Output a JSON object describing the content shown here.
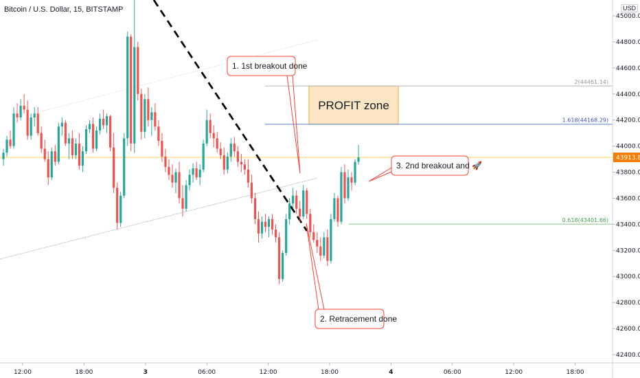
{
  "header": {
    "symbol_title": "Bitcoin / U.S. Dollar, 15, BITSTAMP",
    "currency": "USD"
  },
  "colors": {
    "up": "#26a69a",
    "down": "#ef5350",
    "profit_zone_fill": "#fde6c4",
    "profit_zone_border": "#f5a623",
    "fib_2_line": "#b2b5be",
    "fib_1618_line": "#5b7fd6",
    "fib_0618_line": "#81c784",
    "price_line": "#ffd54f",
    "price_badge": "#f57c00",
    "callout_border": "#f44336",
    "trendline": "#000000"
  },
  "chart_data": {
    "type": "candlestick",
    "title": "Bitcoin / U.S. Dollar, 15, BITSTAMP",
    "y_axis": {
      "position": "right",
      "ticks": [
        45000,
        44800,
        44600,
        44400,
        44200,
        44000,
        43800,
        43600,
        43400,
        43200,
        43000,
        42800,
        42600,
        42400
      ],
      "tick_labels": [
        "45000.00",
        "44800.00",
        "44600.00",
        "44400.00",
        "44200.00",
        "44000.00",
        "43800.00",
        "43600.00",
        "43400.00",
        "43200.00",
        "43000.00",
        "42800.00",
        "42600.00",
        "42400.00"
      ],
      "ylim": [
        42330,
        45120
      ]
    },
    "x_axis": {
      "tick_labels": [
        "12:00",
        "18:00",
        "3",
        "06:00",
        "12:00",
        "18:00",
        "4",
        "06:00",
        "12:00",
        "18:00"
      ],
      "bars_between_ticks": 24
    },
    "current_price": {
      "value": 43913.82,
      "label": "43913.82"
    },
    "fib_levels": [
      {
        "ratio": "2",
        "value": 44461.14,
        "label": "2(44461.14)"
      },
      {
        "ratio": "1.618",
        "value": 44168.29,
        "label": "1.618(44168.29)"
      },
      {
        "ratio": "0.618",
        "value": 43401.66,
        "label": "0.618(43401.66)"
      }
    ],
    "profit_zone": {
      "label": "PROFIT zone",
      "low": 44168.29,
      "high": 44461.14
    },
    "annotations": [
      {
        "id": "breakout-1",
        "text": "1. 1st breakout done"
      },
      {
        "id": "retracement",
        "text": "2. Retracement done"
      },
      {
        "id": "breakout-2",
        "text": "3. 2nd breakout and 🚀"
      }
    ],
    "candles": [
      {
        "o": 43900,
        "h": 43980,
        "l": 43850,
        "c": 43950
      },
      {
        "o": 43950,
        "h": 44080,
        "l": 43920,
        "c": 44050
      },
      {
        "o": 44050,
        "h": 44120,
        "l": 43980,
        "c": 44000
      },
      {
        "o": 44000,
        "h": 44300,
        "l": 43980,
        "c": 44250
      },
      {
        "o": 44250,
        "h": 44330,
        "l": 44180,
        "c": 44220
      },
      {
        "o": 44220,
        "h": 44360,
        "l": 44200,
        "c": 44310
      },
      {
        "o": 44310,
        "h": 44400,
        "l": 44250,
        "c": 44280
      },
      {
        "o": 44280,
        "h": 44350,
        "l": 44050,
        "c": 44080
      },
      {
        "o": 44080,
        "h": 44250,
        "l": 44050,
        "c": 44220
      },
      {
        "o": 44220,
        "h": 44300,
        "l": 44150,
        "c": 44250
      },
      {
        "o": 44250,
        "h": 44300,
        "l": 44080,
        "c": 44100
      },
      {
        "o": 44100,
        "h": 44150,
        "l": 43950,
        "c": 43980
      },
      {
        "o": 43980,
        "h": 44050,
        "l": 43880,
        "c": 43900
      },
      {
        "o": 43900,
        "h": 43960,
        "l": 43700,
        "c": 43760
      },
      {
        "o": 43760,
        "h": 43990,
        "l": 43740,
        "c": 43960
      },
      {
        "o": 43960,
        "h": 44010,
        "l": 43850,
        "c": 43880
      },
      {
        "o": 43880,
        "h": 44180,
        "l": 43860,
        "c": 44150
      },
      {
        "o": 44150,
        "h": 44220,
        "l": 44080,
        "c": 44180
      },
      {
        "o": 44180,
        "h": 44200,
        "l": 44000,
        "c": 44020
      },
      {
        "o": 44020,
        "h": 44100,
        "l": 43900,
        "c": 44060
      },
      {
        "o": 44060,
        "h": 44120,
        "l": 43900,
        "c": 43930
      },
      {
        "o": 43930,
        "h": 44060,
        "l": 43900,
        "c": 44020
      },
      {
        "o": 44020,
        "h": 44100,
        "l": 43820,
        "c": 43850
      },
      {
        "o": 43850,
        "h": 44000,
        "l": 43800,
        "c": 43960
      },
      {
        "o": 43960,
        "h": 44160,
        "l": 43940,
        "c": 44130
      },
      {
        "o": 44130,
        "h": 44200,
        "l": 44100,
        "c": 44170
      },
      {
        "o": 44170,
        "h": 44220,
        "l": 43950,
        "c": 43980
      },
      {
        "o": 43980,
        "h": 44150,
        "l": 43960,
        "c": 44120
      },
      {
        "o": 44120,
        "h": 44250,
        "l": 44090,
        "c": 44210
      },
      {
        "o": 44210,
        "h": 44280,
        "l": 44130,
        "c": 44160
      },
      {
        "o": 44160,
        "h": 44250,
        "l": 44100,
        "c": 44230
      },
      {
        "o": 44230,
        "h": 44240,
        "l": 43960,
        "c": 43990
      },
      {
        "o": 43990,
        "h": 44100,
        "l": 43640,
        "c": 43680
      },
      {
        "o": 43680,
        "h": 43720,
        "l": 43360,
        "c": 43410
      },
      {
        "o": 43410,
        "h": 43650,
        "l": 43380,
        "c": 43620
      },
      {
        "o": 43620,
        "h": 44100,
        "l": 43600,
        "c": 44060
      },
      {
        "o": 44060,
        "h": 44880,
        "l": 44000,
        "c": 44840
      },
      {
        "o": 44840,
        "h": 44860,
        "l": 43960,
        "c": 44020
      },
      {
        "o": 44020,
        "h": 45120,
        "l": 43950,
        "c": 44760
      },
      {
        "o": 44760,
        "h": 44800,
        "l": 44350,
        "c": 44400
      },
      {
        "o": 44400,
        "h": 44440,
        "l": 44050,
        "c": 44110
      },
      {
        "o": 44110,
        "h": 44400,
        "l": 44060,
        "c": 44360
      },
      {
        "o": 44360,
        "h": 44450,
        "l": 44150,
        "c": 44200
      },
      {
        "o": 44200,
        "h": 44300,
        "l": 44080,
        "c": 44260
      },
      {
        "o": 44260,
        "h": 44330,
        "l": 44120,
        "c": 44150
      },
      {
        "o": 44150,
        "h": 44200,
        "l": 44000,
        "c": 44040
      },
      {
        "o": 44040,
        "h": 44100,
        "l": 43880,
        "c": 43920
      },
      {
        "o": 43920,
        "h": 43980,
        "l": 43800,
        "c": 43840
      },
      {
        "o": 43840,
        "h": 43900,
        "l": 43740,
        "c": 43780
      },
      {
        "o": 43780,
        "h": 43860,
        "l": 43680,
        "c": 43720
      },
      {
        "o": 43720,
        "h": 43830,
        "l": 43640,
        "c": 43800
      },
      {
        "o": 43800,
        "h": 43880,
        "l": 43560,
        "c": 43600
      },
      {
        "o": 43600,
        "h": 43700,
        "l": 43460,
        "c": 43520
      },
      {
        "o": 43520,
        "h": 43740,
        "l": 43500,
        "c": 43700
      },
      {
        "o": 43700,
        "h": 43820,
        "l": 43660,
        "c": 43780
      },
      {
        "o": 43780,
        "h": 43870,
        "l": 43720,
        "c": 43830
      },
      {
        "o": 43830,
        "h": 43880,
        "l": 43740,
        "c": 43760
      },
      {
        "o": 43760,
        "h": 43860,
        "l": 43700,
        "c": 43820
      },
      {
        "o": 43820,
        "h": 44050,
        "l": 43800,
        "c": 44020
      },
      {
        "o": 44020,
        "h": 44280,
        "l": 44000,
        "c": 44200
      },
      {
        "o": 44200,
        "h": 44250,
        "l": 44060,
        "c": 44100
      },
      {
        "o": 44100,
        "h": 44160,
        "l": 43990,
        "c": 44060
      },
      {
        "o": 44060,
        "h": 44110,
        "l": 43950,
        "c": 43980
      },
      {
        "o": 43980,
        "h": 44030,
        "l": 43900,
        "c": 43930
      },
      {
        "o": 43930,
        "h": 43990,
        "l": 43780,
        "c": 43820
      },
      {
        "o": 43820,
        "h": 43950,
        "l": 43790,
        "c": 43920
      },
      {
        "o": 43920,
        "h": 44060,
        "l": 43880,
        "c": 44020
      },
      {
        "o": 44020,
        "h": 44070,
        "l": 43920,
        "c": 43960
      },
      {
        "o": 43960,
        "h": 44000,
        "l": 43840,
        "c": 43880
      },
      {
        "o": 43880,
        "h": 43940,
        "l": 43800,
        "c": 43860
      },
      {
        "o": 43860,
        "h": 43900,
        "l": 43780,
        "c": 43820
      },
      {
        "o": 43820,
        "h": 43900,
        "l": 43680,
        "c": 43720
      },
      {
        "o": 43720,
        "h": 43780,
        "l": 43560,
        "c": 43600
      },
      {
        "o": 43600,
        "h": 43640,
        "l": 43400,
        "c": 43440
      },
      {
        "o": 43440,
        "h": 43500,
        "l": 43260,
        "c": 43330
      },
      {
        "o": 43330,
        "h": 43460,
        "l": 43290,
        "c": 43420
      },
      {
        "o": 43420,
        "h": 43480,
        "l": 43340,
        "c": 43380
      },
      {
        "o": 43380,
        "h": 43460,
        "l": 43300,
        "c": 43440
      },
      {
        "o": 43440,
        "h": 43480,
        "l": 43320,
        "c": 43360
      },
      {
        "o": 43360,
        "h": 43400,
        "l": 43260,
        "c": 43300
      },
      {
        "o": 43300,
        "h": 43340,
        "l": 42940,
        "c": 42980
      },
      {
        "o": 42980,
        "h": 43200,
        "l": 42960,
        "c": 43180
      },
      {
        "o": 43180,
        "h": 43480,
        "l": 43160,
        "c": 43440
      },
      {
        "o": 43440,
        "h": 43600,
        "l": 43400,
        "c": 43560
      },
      {
        "o": 43560,
        "h": 43680,
        "l": 43520,
        "c": 43620
      },
      {
        "o": 43620,
        "h": 43660,
        "l": 43480,
        "c": 43520
      },
      {
        "o": 43520,
        "h": 43580,
        "l": 43420,
        "c": 43460
      },
      {
        "o": 43460,
        "h": 43700,
        "l": 43440,
        "c": 43660
      },
      {
        "o": 43660,
        "h": 43680,
        "l": 43440,
        "c": 43480
      },
      {
        "o": 43480,
        "h": 43520,
        "l": 43300,
        "c": 43340
      },
      {
        "o": 43340,
        "h": 43400,
        "l": 43260,
        "c": 43280
      },
      {
        "o": 43280,
        "h": 43340,
        "l": 43180,
        "c": 43230
      },
      {
        "o": 43230,
        "h": 43300,
        "l": 43120,
        "c": 43160
      },
      {
        "o": 43160,
        "h": 43340,
        "l": 43140,
        "c": 43300
      },
      {
        "o": 43300,
        "h": 43360,
        "l": 43080,
        "c": 43120
      },
      {
        "o": 43120,
        "h": 43480,
        "l": 43100,
        "c": 43440
      },
      {
        "o": 43440,
        "h": 43640,
        "l": 43420,
        "c": 43600
      },
      {
        "o": 43600,
        "h": 43620,
        "l": 43380,
        "c": 43420
      },
      {
        "o": 43420,
        "h": 43840,
        "l": 43400,
        "c": 43800
      },
      {
        "o": 43800,
        "h": 43860,
        "l": 43560,
        "c": 43600
      },
      {
        "o": 43600,
        "h": 43820,
        "l": 43580,
        "c": 43760
      },
      {
        "o": 43760,
        "h": 43800,
        "l": 43660,
        "c": 43720
      },
      {
        "o": 43720,
        "h": 43900,
        "l": 43700,
        "c": 43880
      },
      {
        "o": 43880,
        "h": 44010,
        "l": 43860,
        "c": 43914
      }
    ]
  }
}
